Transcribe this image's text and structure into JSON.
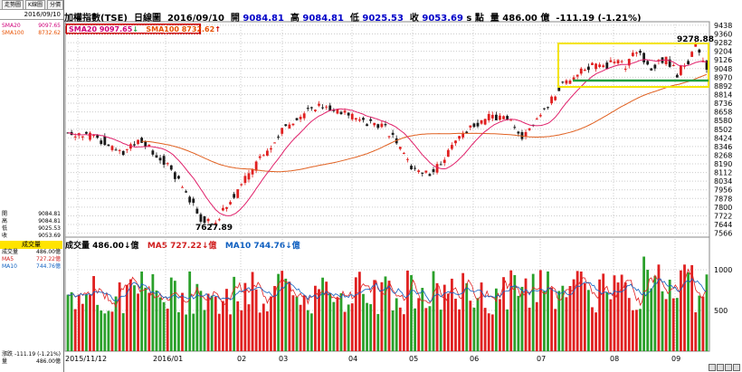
{
  "left_panel": {
    "tabs": [
      "走勢圖",
      "K線圖",
      "分價"
    ],
    "date": "2016/09/10",
    "sma": [
      {
        "label": "SMA20",
        "value": "9097.65",
        "color": "#d0007a"
      },
      {
        "label": "SMA100",
        "value": "8732.62",
        "color": "#e85000"
      }
    ],
    "ohlc": [
      {
        "label": "開",
        "value": "9084.81"
      },
      {
        "label": "高",
        "value": "9084.81"
      },
      {
        "label": "低",
        "value": "9025.53"
      },
      {
        "label": "收",
        "value": "9053.69"
      }
    ],
    "volume_header": "成交量",
    "volume": [
      {
        "label": "成交量",
        "value": "486.00億"
      },
      {
        "label": "MA5",
        "value": "727.22億"
      },
      {
        "label": "MA10",
        "value": "744.76億"
      }
    ],
    "change": [
      {
        "label": "漲跌",
        "value": "-111.19 (-1.21%)"
      },
      {
        "label": "量",
        "value": "486.00億"
      }
    ]
  },
  "header": {
    "name": "加權指數(TSE)",
    "chart_kind": "日線圖",
    "date": "2016/09/10",
    "open_label": "開",
    "open": "9084.81",
    "high_label": "高",
    "high": "9084.81",
    "low_label": "低",
    "low": "9025.53",
    "close_label": "收",
    "close": "9053.69",
    "close_suffix": "s 點",
    "vol_label": "量",
    "vol": "486.00 億",
    "change": "-111.19 (-1.21%)"
  },
  "sma_box": {
    "sma20": "SMA20 9097.65",
    "sma20_arrow": "↓",
    "sma100": "SMA100 8732.62",
    "sma100_arrow": "↑"
  },
  "volume_header": {
    "vol": "成交量 486.00↓億",
    "ma5": "MA5 727.22↓億",
    "ma10": "MA10 744.76↓億"
  },
  "annotations": {
    "high_label": "9278.88",
    "low_label": "7627.89"
  },
  "colors": {
    "up": "#e02020",
    "down": "#1a1a1a",
    "vol_up": "#e02020",
    "vol_down": "#2aa02a",
    "sma20": "#e0206a",
    "sma100": "#e06020",
    "highlight": "#f4e400",
    "support": "#20a040"
  },
  "chart_data": {
    "type": "candlestick",
    "y_ticks": [
      "9438",
      "9360",
      "9282",
      "9204",
      "9126",
      "9048",
      "8970",
      "8892",
      "8814",
      "8736",
      "8658",
      "8580",
      "8502",
      "8424",
      "8346",
      "8268",
      "8190",
      "8112",
      "8034",
      "7956",
      "7878",
      "7800",
      "7722",
      "7644",
      "7566"
    ],
    "ylim": [
      7530,
      9470
    ],
    "x_ticks": [
      "2015/11/12",
      "2016/01",
      "02",
      "03",
      "04",
      "05",
      "06",
      "07",
      "08",
      "09"
    ],
    "volume_ticks": [
      "1000",
      "500"
    ],
    "volume_ylim": [
      0,
      1400
    ]
  }
}
